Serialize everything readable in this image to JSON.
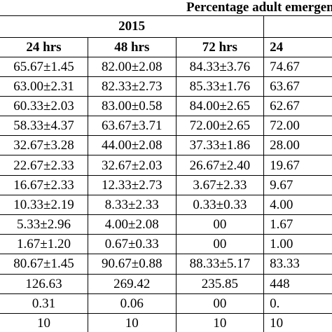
{
  "table": {
    "caption": "Percentage adult emergence",
    "group_headers": [
      "2015",
      ""
    ],
    "columns": [
      "24 hrs",
      "48 hrs",
      "72 hrs",
      "24"
    ],
    "rows": [
      [
        "65.67±1.45",
        "82.00±2.08",
        "84.33±3.76",
        "74.67"
      ],
      [
        "63.00±2.31",
        "82.33±2.73",
        "85.33±1.76",
        "63.67"
      ],
      [
        "60.33±2.03",
        "83.00±0.58",
        "84.00±2.65",
        "62.67"
      ],
      [
        "58.33±4.37",
        "63.67±3.71",
        "72.00±2.65",
        "72.00"
      ],
      [
        "32.67±3.28",
        "44.00±2.08",
        "37.33±1.86",
        "28.00"
      ],
      [
        "22.67±2.33",
        "32.67±2.03",
        "26.67±2.40",
        "19.67"
      ],
      [
        "16.67±2.33",
        "12.33±2.73",
        "3.67±2.33",
        "9.67"
      ],
      [
        "10.33±2.19",
        "8.33±2.33",
        "0.33±0.33",
        "4.00"
      ],
      [
        "5.33±2.96",
        "4.00±2.08",
        "00",
        "1.67"
      ],
      [
        "1.67±1.20",
        "0.67±0.33",
        "00",
        "1.00"
      ],
      [
        "80.67±1.45",
        "90.67±0.88",
        "88.33±5.17",
        "83.33"
      ],
      [
        "126.63",
        "269.42",
        "235.85",
        "448"
      ],
      [
        "0.31",
        "0.06",
        "00",
        "0."
      ],
      [
        "10",
        "10",
        "10",
        "10"
      ]
    ]
  }
}
